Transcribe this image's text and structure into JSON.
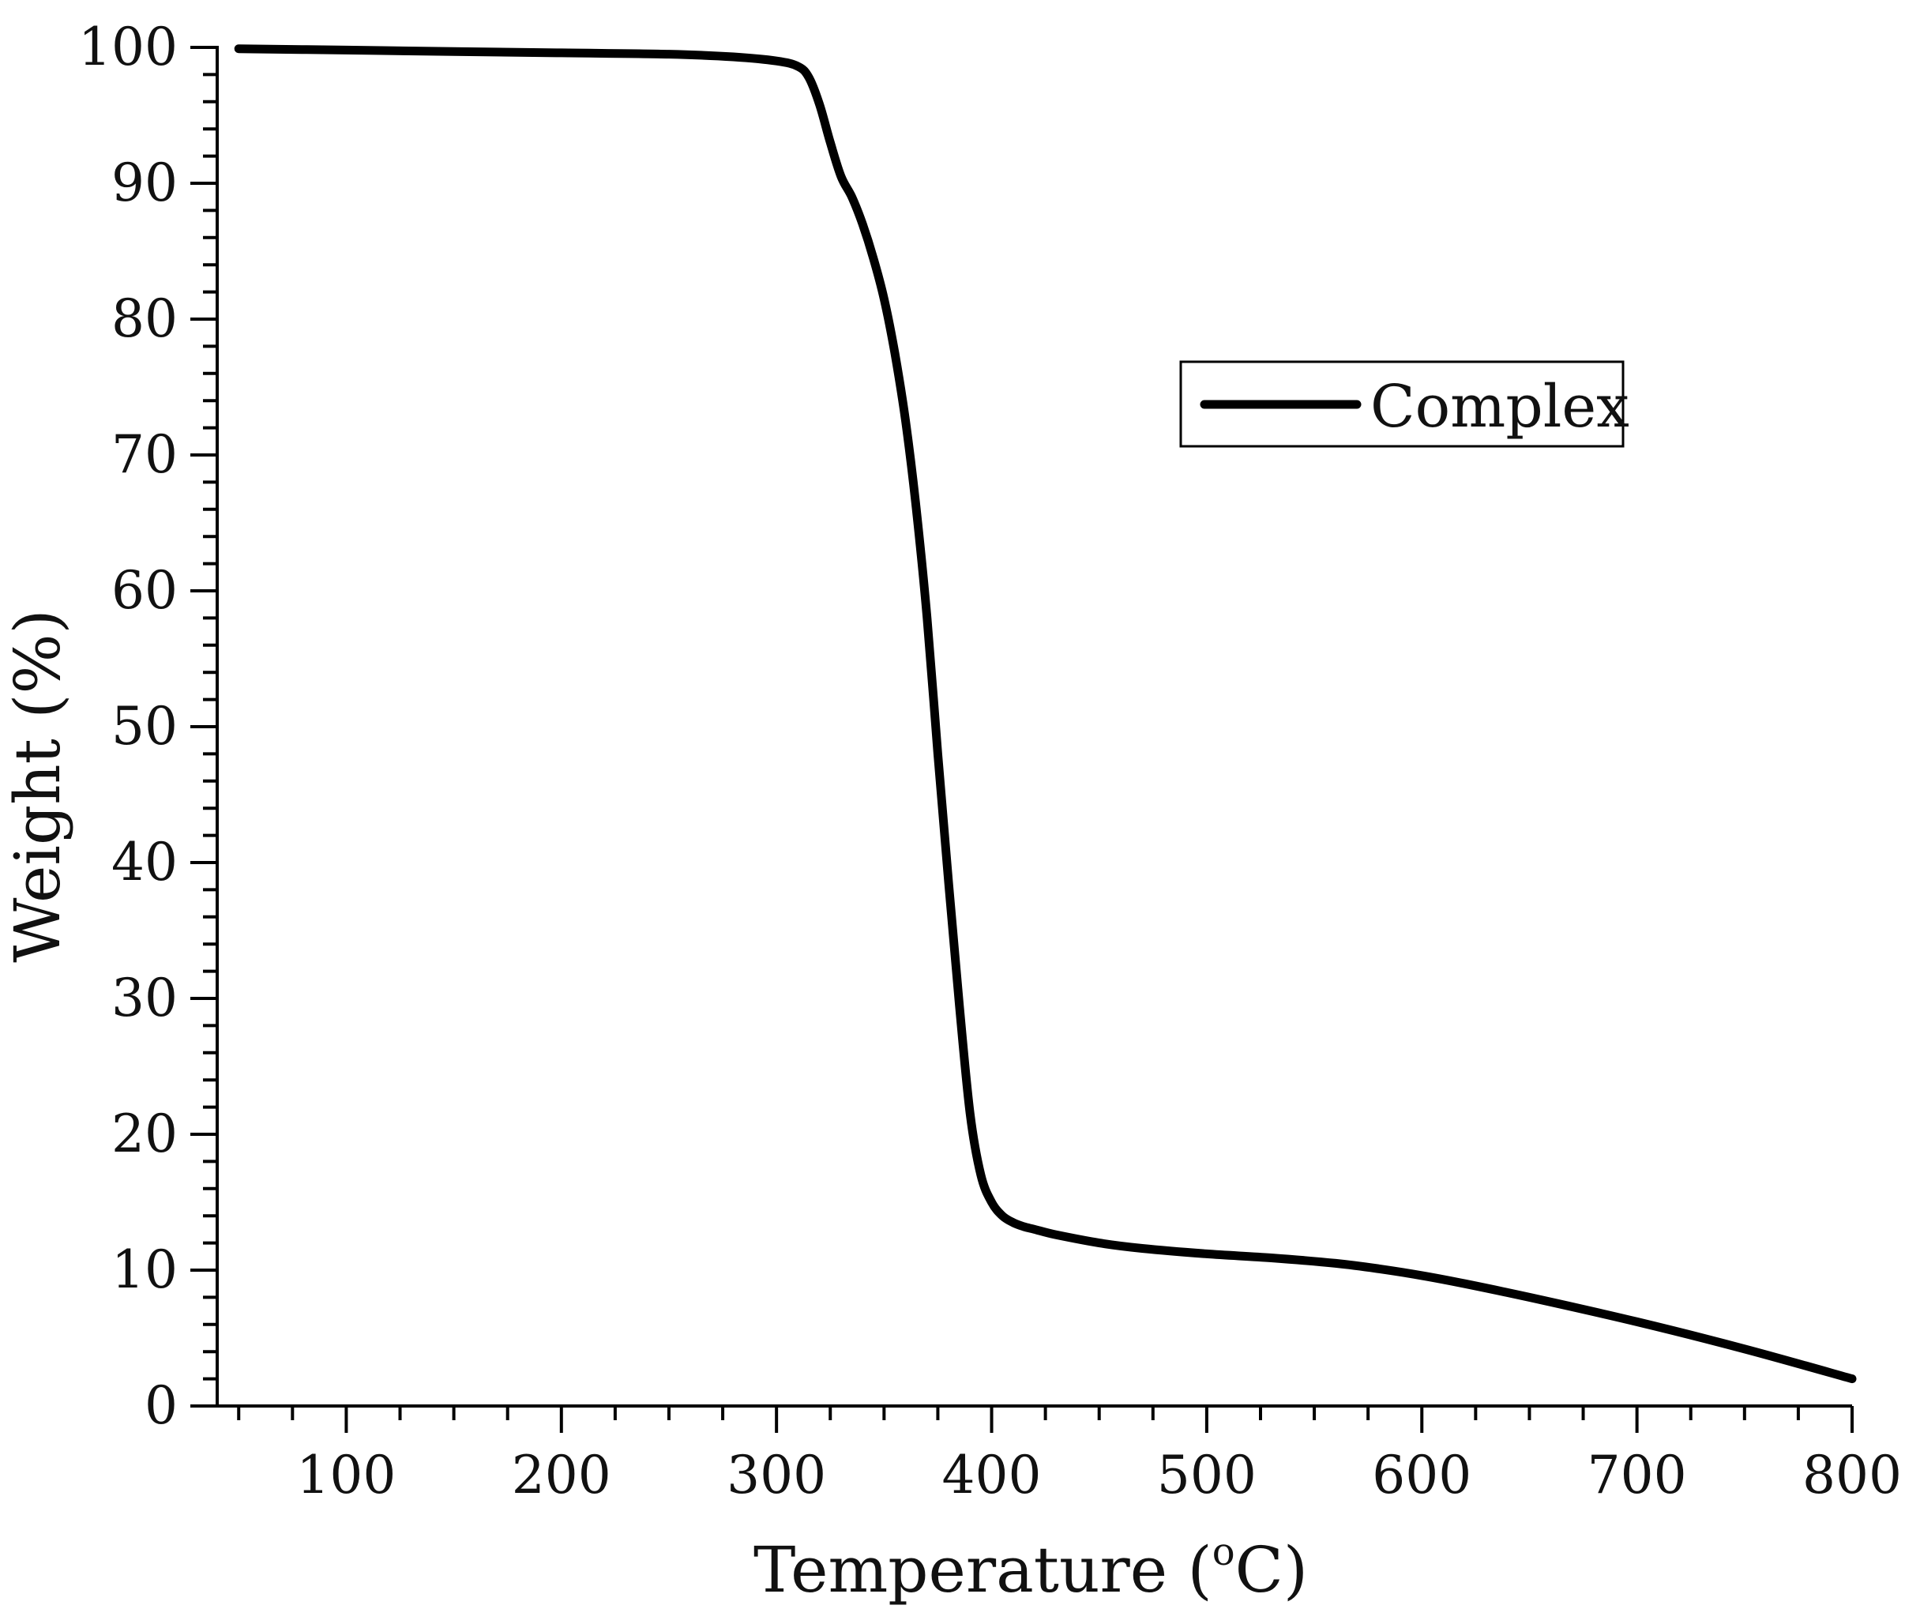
{
  "chart_data": {
    "type": "line",
    "title": "",
    "xlabel": "Temperature (",
    "xlabel_superscript": "o",
    "xlabel_suffix": "C)",
    "ylabel": "Weight (%)",
    "xlim": [
      40,
      800
    ],
    "ylim": [
      0,
      100
    ],
    "x_ticks": [
      100,
      200,
      300,
      400,
      500,
      600,
      700,
      800
    ],
    "y_ticks": [
      0,
      10,
      20,
      30,
      40,
      50,
      60,
      70,
      80,
      90,
      100
    ],
    "x_minor_step": 25,
    "y_minor_step": 2,
    "grid": false,
    "legend_position": "upper-right",
    "line_color": "#000000",
    "series": [
      {
        "name": "Complex",
        "x": [
          50,
          100,
          150,
          200,
          250,
          280,
          300,
          310,
          315,
          320,
          325,
          330,
          335,
          340,
          345,
          350,
          355,
          360,
          365,
          370,
          375,
          380,
          385,
          390,
          395,
          400,
          405,
          410,
          415,
          420,
          430,
          450,
          470,
          500,
          530,
          560,
          580,
          600,
          620,
          650,
          700,
          750,
          800
        ],
        "y": [
          99.9,
          99.8,
          99.7,
          99.6,
          99.5,
          99.3,
          99.0,
          98.6,
          97.8,
          95.8,
          93.0,
          90.5,
          89.0,
          87.0,
          84.5,
          81.5,
          77.5,
          72.5,
          66.0,
          58.0,
          48.0,
          38.5,
          29.5,
          21.5,
          17.0,
          15.0,
          14.0,
          13.5,
          13.2,
          13.0,
          12.6,
          12.0,
          11.6,
          11.2,
          10.9,
          10.5,
          10.1,
          9.6,
          9.0,
          8.0,
          6.2,
          4.2,
          2.0
        ]
      }
    ]
  }
}
